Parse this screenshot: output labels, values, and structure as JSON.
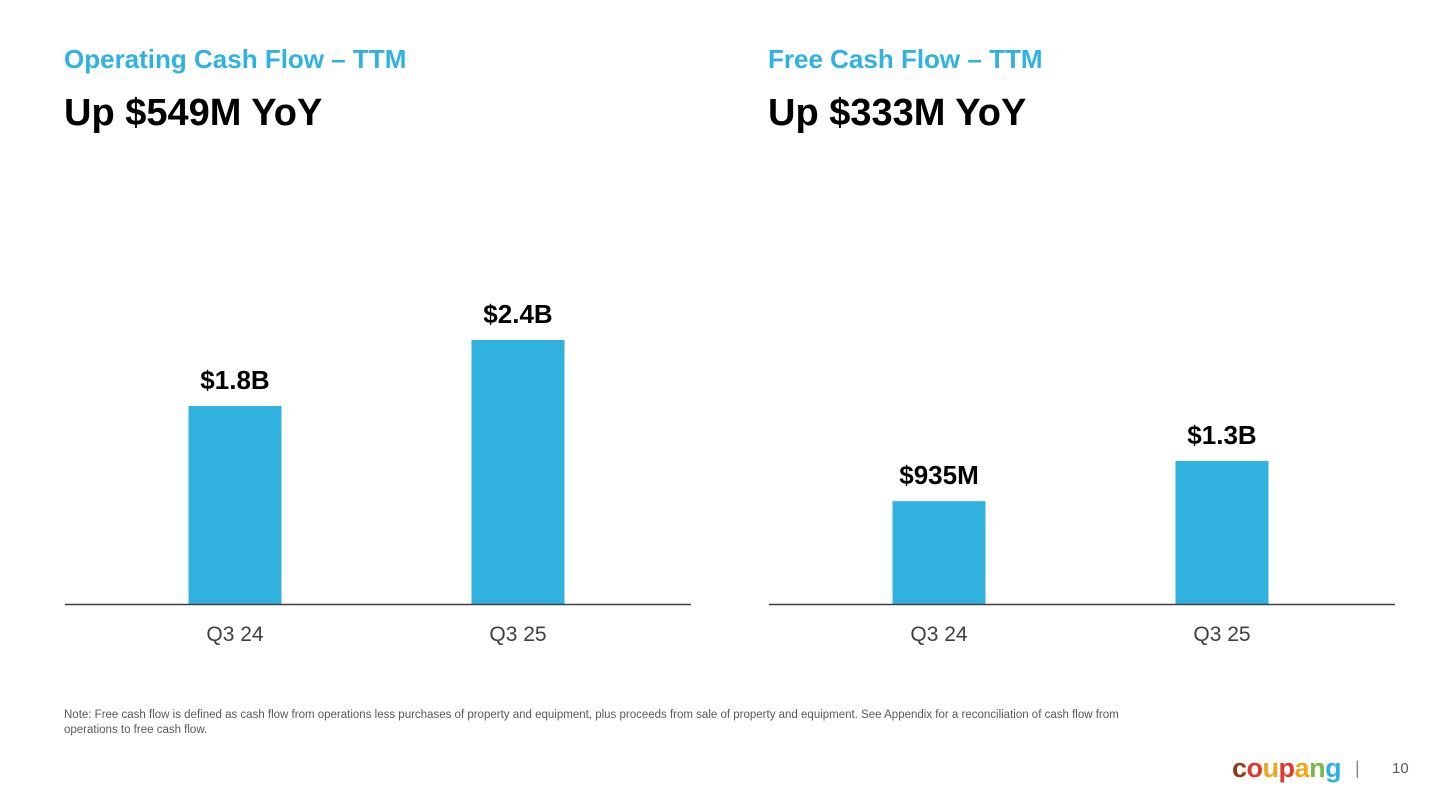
{
  "colors": {
    "accent": "#2fb2df",
    "bar": "#31b2de",
    "headline": "#000000",
    "axis": "#404040",
    "tick_text": "#404040",
    "note_text": "#595959"
  },
  "chart_data": [
    {
      "type": "bar",
      "title": "Operating Cash Flow – TTM",
      "subtitle": "Up $549M YoY",
      "categories": [
        "Q3 24",
        "Q3 25"
      ],
      "values": [
        1.8,
        2.4
      ],
      "value_unit": "$B",
      "data_labels": [
        "$1.8B",
        "$2.4B"
      ],
      "xlabel": "",
      "ylabel": "",
      "ylim": [
        0,
        2.4
      ],
      "grid": false,
      "legend": "none"
    },
    {
      "type": "bar",
      "title": "Free Cash Flow – TTM",
      "subtitle": "Up $333M YoY",
      "categories": [
        "Q3 24",
        "Q3 25"
      ],
      "values": [
        0.935,
        1.3
      ],
      "value_unit": "$B",
      "data_labels": [
        "$935M",
        "$1.3B"
      ],
      "xlabel": "",
      "ylabel": "",
      "ylim": [
        0,
        2.4
      ],
      "grid": false,
      "legend": "none"
    }
  ],
  "note": "Note: Free cash flow is defined as cash flow from operations less purchases of property and equipment, plus proceeds from sale of property and equipment. See Appendix for a reconciliation of cash flow from operations to free cash flow.",
  "footer": {
    "logo_letters": [
      {
        "ch": "c",
        "color": "#8b3e1e"
      },
      {
        "ch": "o",
        "color": "#e03a2f"
      },
      {
        "ch": "u",
        "color": "#f0a61b"
      },
      {
        "ch": "p",
        "color": "#e03a2f"
      },
      {
        "ch": "a",
        "color": "#f0a61b"
      },
      {
        "ch": "n",
        "color": "#7ab648"
      },
      {
        "ch": "g",
        "color": "#2fb2df"
      }
    ],
    "logo_text": "coupang",
    "separator": "|",
    "page_number": "10"
  }
}
